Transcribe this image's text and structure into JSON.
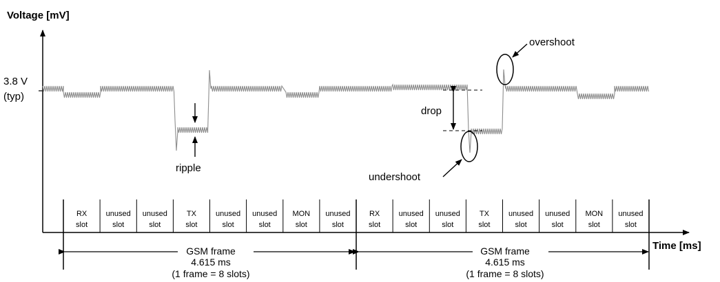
{
  "axes": {
    "y_label": "Voltage [mV]",
    "x_label": "Time [ms]",
    "y_tick_value": "3.8 V",
    "y_tick_note": "(typ)"
  },
  "annotations": {
    "ripple": "ripple",
    "drop": "drop",
    "undershoot": "undershoot",
    "overshoot": "overshoot"
  },
  "slots": [
    {
      "line1": "RX",
      "line2": "slot"
    },
    {
      "line1": "unused",
      "line2": "slot"
    },
    {
      "line1": "unused",
      "line2": "slot"
    },
    {
      "line1": "TX",
      "line2": "slot"
    },
    {
      "line1": "unused",
      "line2": "slot"
    },
    {
      "line1": "unused",
      "line2": "slot"
    },
    {
      "line1": "MON",
      "line2": "slot"
    },
    {
      "line1": "unused",
      "line2": "slot"
    },
    {
      "line1": "RX",
      "line2": "slot"
    },
    {
      "line1": "unused",
      "line2": "slot"
    },
    {
      "line1": "unused",
      "line2": "slot"
    },
    {
      "line1": "TX",
      "line2": "slot"
    },
    {
      "line1": "unused",
      "line2": "slot"
    },
    {
      "line1": "unused",
      "line2": "slot"
    },
    {
      "line1": "MON",
      "line2": "slot"
    },
    {
      "line1": "unused",
      "line2": "slot"
    }
  ],
  "frames": [
    {
      "title": "GSM frame",
      "duration": "4.615 ms",
      "note": "(1 frame = 8 slots)"
    },
    {
      "title": "GSM frame",
      "duration": "4.615 ms",
      "note": "(1 frame = 8 slots)"
    }
  ],
  "colors": {
    "waveform": "#8c8c8c",
    "ink": "#000000"
  }
}
